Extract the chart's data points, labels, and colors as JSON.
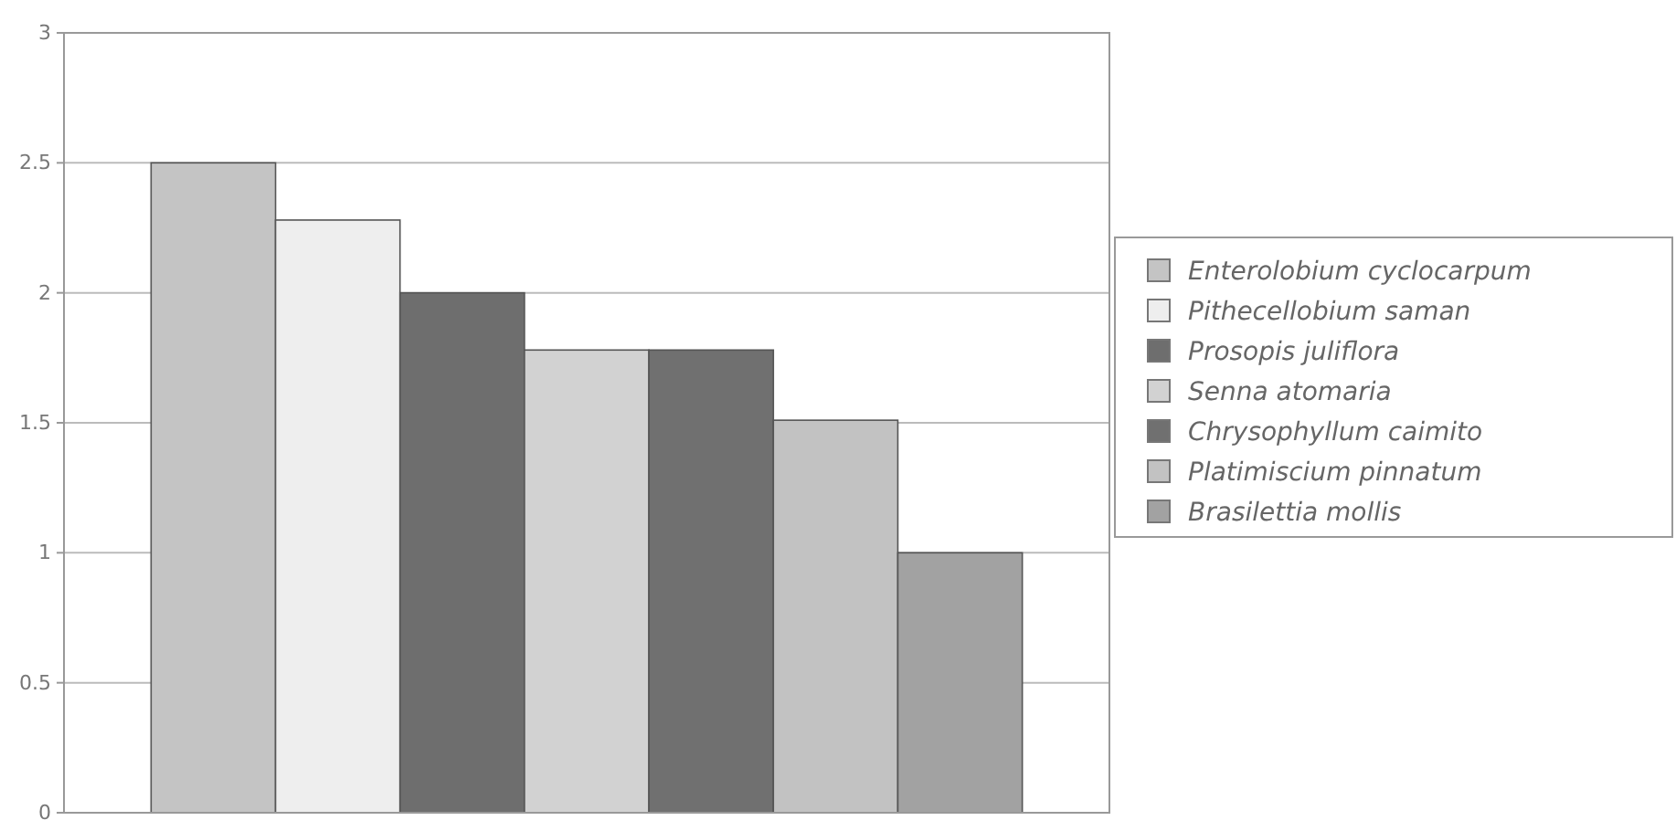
{
  "chart_data": {
    "type": "bar",
    "categories": [
      null
    ],
    "series": [
      {
        "name": "Enterolobium cyclocarpum",
        "color": "#c4c4c4",
        "values": [
          2.5
        ]
      },
      {
        "name": "Pithecellobium saman",
        "color": "#eeeeee",
        "values": [
          2.28
        ]
      },
      {
        "name": "Prosopis juliflora",
        "color": "#6e6e6e",
        "values": [
          2.0
        ]
      },
      {
        "name": "Senna atomaria",
        "color": "#d2d2d2",
        "values": [
          1.78
        ]
      },
      {
        "name": "Chrysophyllum caimito",
        "color": "#707070",
        "values": [
          1.78
        ]
      },
      {
        "name": "Platimiscium pinnatum",
        "color": "#c2c2c2",
        "values": [
          1.51
        ]
      },
      {
        "name": "Brasilettia mollis",
        "color": "#a2a2a2",
        "values": [
          1.0
        ]
      }
    ],
    "ylim": [
      0,
      3
    ],
    "yticks": [
      0,
      0.5,
      1,
      1.5,
      2,
      2.5,
      3
    ],
    "grid": "y",
    "legend": "right"
  }
}
